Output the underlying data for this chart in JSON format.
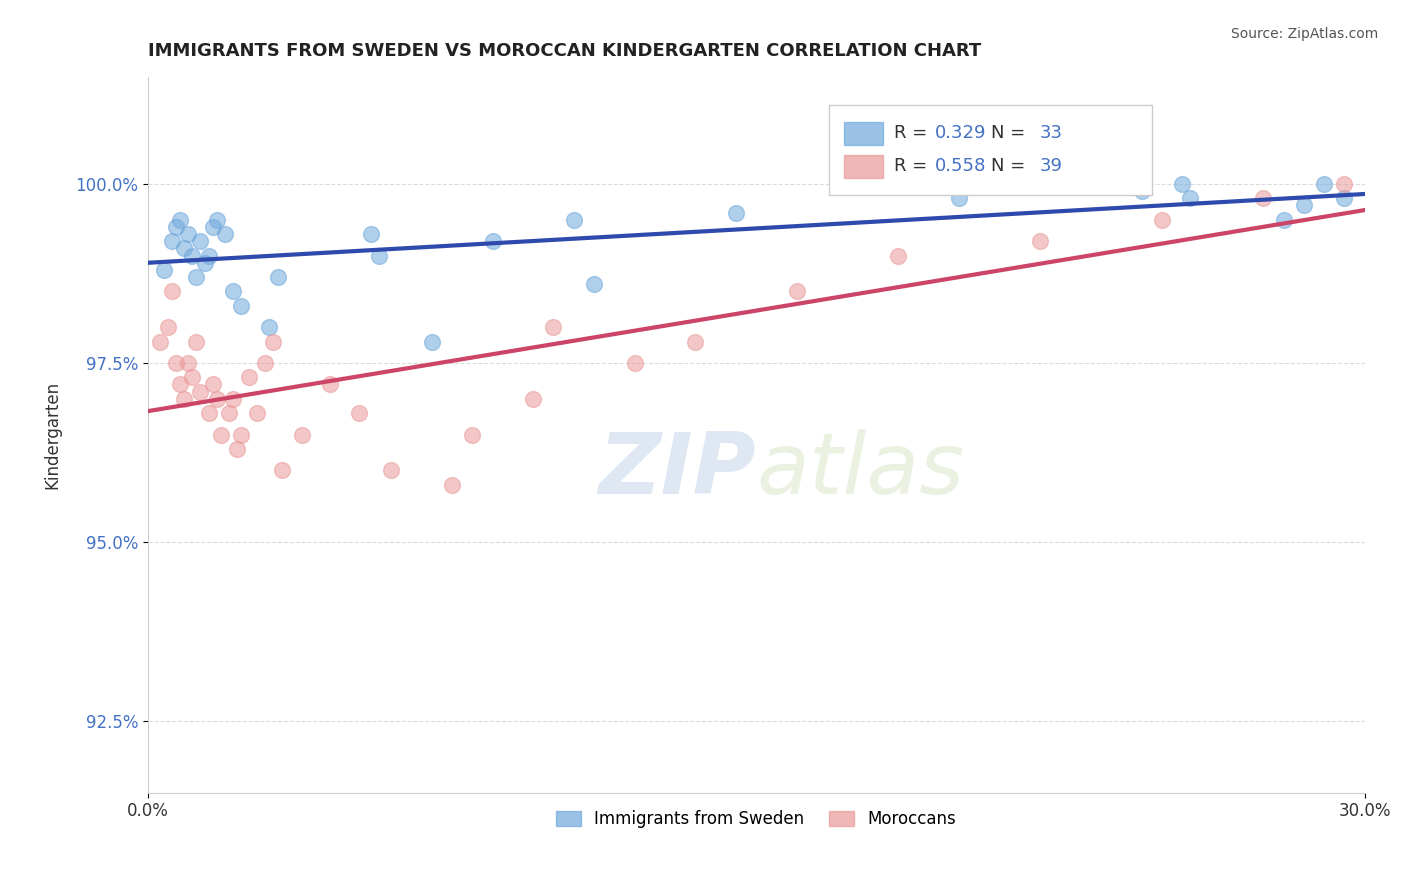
{
  "title": "IMMIGRANTS FROM SWEDEN VS MOROCCAN KINDERGARTEN CORRELATION CHART",
  "source_text": "Source: ZipAtlas.com",
  "xlabel": "",
  "ylabel": "Kindergarten",
  "xlim": [
    0.0,
    30.0
  ],
  "ylim": [
    91.5,
    101.5
  ],
  "yticks": [
    92.5,
    95.0,
    97.5,
    100.0
  ],
  "xticks": [
    0.0,
    30.0
  ],
  "xtick_labels": [
    "0.0%",
    "30.0%"
  ],
  "ytick_labels": [
    "92.5%",
    "95.0%",
    "97.5%",
    "100.0%"
  ],
  "blue_R": 0.329,
  "blue_N": 33,
  "pink_R": 0.558,
  "pink_N": 39,
  "blue_color": "#6fa8dc",
  "pink_color": "#ea9999",
  "blue_line_color": "#2e4aad",
  "pink_line_color": "#cc4466",
  "legend_label_blue": "Immigrants from Sweden",
  "legend_label_pink": "Moroccans",
  "watermark_zip": "ZIP",
  "watermark_atlas": "atlas",
  "blue_scatter_x": [
    0.4,
    0.6,
    0.7,
    0.8,
    0.9,
    1.0,
    1.1,
    1.2,
    1.3,
    1.4,
    1.5,
    1.6,
    1.7,
    1.9,
    2.1,
    2.3,
    3.0,
    3.2,
    5.5,
    5.7,
    7.0,
    8.5,
    10.5,
    11.0,
    14.5,
    20.0,
    24.5,
    25.5,
    25.7,
    28.0,
    28.5,
    29.0,
    29.5
  ],
  "blue_scatter_y": [
    98.8,
    99.2,
    99.4,
    99.5,
    99.1,
    99.3,
    99.0,
    98.7,
    99.2,
    98.9,
    99.0,
    99.4,
    99.5,
    99.3,
    98.5,
    98.3,
    98.0,
    98.7,
    99.3,
    99.0,
    97.8,
    99.2,
    99.5,
    98.6,
    99.6,
    99.8,
    99.9,
    100.0,
    99.8,
    99.5,
    99.7,
    100.0,
    99.8
  ],
  "pink_scatter_x": [
    0.3,
    0.5,
    0.6,
    0.7,
    0.8,
    0.9,
    1.0,
    1.1,
    1.2,
    1.3,
    1.5,
    1.6,
    1.7,
    1.8,
    2.0,
    2.1,
    2.2,
    2.3,
    2.5,
    2.7,
    2.9,
    3.1,
    3.3,
    3.8,
    4.5,
    5.2,
    6.0,
    7.5,
    8.0,
    9.5,
    10.0,
    12.0,
    13.5,
    16.0,
    18.5,
    22.0,
    25.0,
    27.5,
    29.5
  ],
  "pink_scatter_y": [
    97.8,
    98.0,
    98.5,
    97.5,
    97.2,
    97.0,
    97.5,
    97.3,
    97.8,
    97.1,
    96.8,
    97.2,
    97.0,
    96.5,
    96.8,
    97.0,
    96.3,
    96.5,
    97.3,
    96.8,
    97.5,
    97.8,
    96.0,
    96.5,
    97.2,
    96.8,
    96.0,
    95.8,
    96.5,
    97.0,
    98.0,
    97.5,
    97.8,
    98.5,
    99.0,
    99.2,
    99.5,
    99.8,
    100.0
  ]
}
